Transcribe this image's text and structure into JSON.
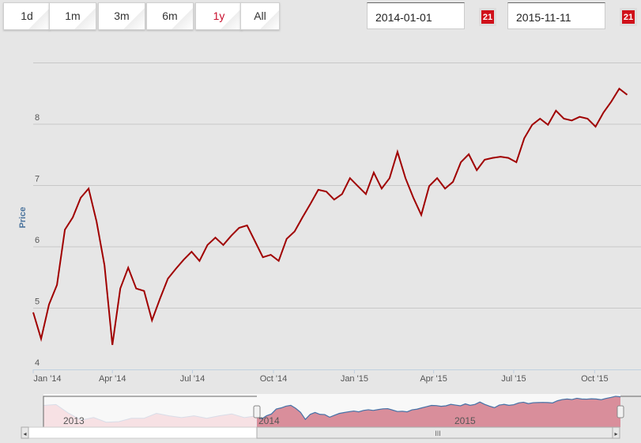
{
  "range_buttons": [
    {
      "label": "1d"
    },
    {
      "label": "1m"
    },
    {
      "label": "3m"
    },
    {
      "label": "6m"
    },
    {
      "label": "1y",
      "active": true
    },
    {
      "label": "All"
    }
  ],
  "date_from": "2014-01-01",
  "date_to": "2015-11-11",
  "calendar_icon_text": "21",
  "colors": {
    "line": "#a00000",
    "active": "#c8102e",
    "nav_fill": "#d98e9b",
    "nav_line": "#4572a7"
  },
  "chart_data": {
    "type": "line",
    "ylabel": "Price",
    "ylim": [
      4,
      9
    ],
    "yticks": [
      "4",
      "5",
      "6",
      "7",
      "8"
    ],
    "x_start": "2014-01-01",
    "x_step_days": 9,
    "xticks": [
      {
        "label": "Jan '14",
        "day": 0
      },
      {
        "label": "Apr '14",
        "day": 90
      },
      {
        "label": "Jul '14",
        "day": 181
      },
      {
        "label": "Oct '14",
        "day": 273
      },
      {
        "label": "Jan '15",
        "day": 365
      },
      {
        "label": "Apr '15",
        "day": 455
      },
      {
        "label": "Jul '15",
        "day": 546
      },
      {
        "label": "Oct '15",
        "day": 638
      }
    ],
    "values": [
      4.93,
      4.5,
      5.06,
      5.38,
      6.28,
      6.48,
      6.8,
      6.95,
      6.41,
      5.7,
      4.4,
      5.32,
      5.66,
      5.32,
      5.28,
      4.8,
      5.15,
      5.48,
      5.64,
      5.79,
      5.92,
      5.77,
      6.03,
      6.15,
      6.03,
      6.18,
      6.31,
      6.35,
      6.09,
      5.83,
      5.87,
      5.77,
      6.13,
      6.25,
      6.48,
      6.7,
      6.93,
      6.9,
      6.77,
      6.86,
      7.12,
      6.99,
      6.86,
      7.21,
      6.95,
      7.12,
      7.55,
      7.12,
      6.8,
      6.52,
      6.99,
      7.12,
      6.95,
      7.06,
      7.38,
      7.51,
      7.25,
      7.42,
      7.45,
      7.47,
      7.45,
      7.38,
      7.77,
      7.99,
      8.09,
      7.99,
      8.22,
      8.09,
      8.06,
      8.12,
      8.09,
      7.96,
      8.19,
      8.37,
      8.58,
      8.48
    ],
    "navigator": {
      "year_labels": [
        "2013",
        "2014",
        "2015"
      ],
      "values_2013": [
        6.93,
        7.09,
        5.52,
        4.28,
        4.74,
        3.9,
        4.0,
        4.6,
        4.6,
        5.5,
        5.06,
        4.74,
        5.06,
        4.6,
        5.06,
        5.4,
        4.74,
        5.06
      ]
    }
  }
}
